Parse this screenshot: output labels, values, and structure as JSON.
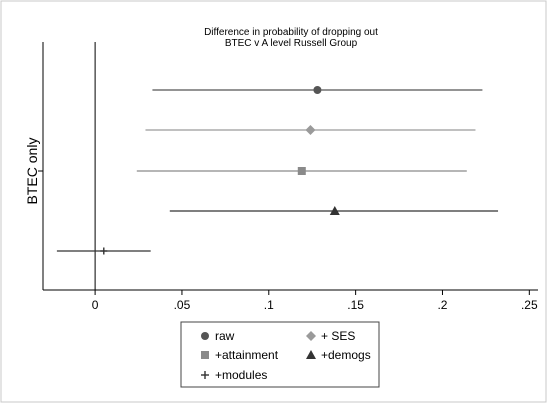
{
  "chart_data": {
    "type": "scatter",
    "subtype": "coefficient-plot-with-confidence-intervals",
    "title": "Difference in probability of dropping out",
    "subtitle": "BTEC v A level Russell Group",
    "ylabel": "BTEC only",
    "xlabel": "",
    "xlim": [
      -0.03,
      0.255
    ],
    "xticks": [
      0,
      0.05,
      0.1,
      0.15,
      0.2,
      0.25
    ],
    "xtick_labels": [
      "0",
      ".05",
      ".1",
      ".15",
      ".2",
      ".25"
    ],
    "reference_line_x": 0,
    "grid": false,
    "legend_position": "bottom",
    "series": [
      {
        "name": "raw",
        "marker": "circle",
        "color": "#555555",
        "estimate": 0.128,
        "ci": [
          0.033,
          0.223
        ]
      },
      {
        "name": "+ SES",
        "marker": "diamond",
        "color": "#9a9a9a",
        "estimate": 0.124,
        "ci": [
          0.029,
          0.219
        ]
      },
      {
        "name": "+attainment",
        "marker": "square",
        "color": "#8a8a8a",
        "estimate": 0.119,
        "ci": [
          0.024,
          0.214
        ]
      },
      {
        "name": "+demogs",
        "marker": "triangle",
        "color": "#333333",
        "estimate": 0.138,
        "ci": [
          0.043,
          0.232
        ]
      },
      {
        "name": "+modules",
        "marker": "plus",
        "color": "#333333",
        "estimate": 0.005,
        "ci": [
          -0.022,
          0.032
        ]
      }
    ],
    "legend_order": [
      "raw",
      "+ SES",
      "+attainment",
      "+demogs",
      "+modules"
    ]
  }
}
